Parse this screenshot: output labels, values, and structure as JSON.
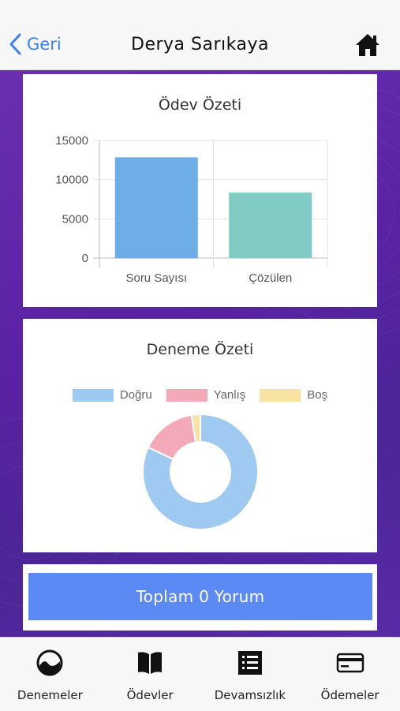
{
  "header": {
    "back_label": "Geri",
    "title": "Derya Sarıkaya"
  },
  "odev_card": {
    "title": "Ödev Özeti"
  },
  "deneme_card": {
    "title": "Deneme Özeti"
  },
  "comments": {
    "button_label": "Toplam 0 Yorum"
  },
  "tabs": [
    {
      "label": "Denemeler",
      "icon": "exam-icon"
    },
    {
      "label": "Ödevler",
      "icon": "book-icon"
    },
    {
      "label": "Devamsızlık",
      "icon": "list-icon"
    },
    {
      "label": "Ödemeler",
      "icon": "credit-card-icon"
    }
  ],
  "colors": {
    "accent": "#3b82f6",
    "button": "#5b8af5",
    "background": "#5b22a6"
  },
  "chart_data": [
    {
      "type": "bar",
      "title": "Ödev Özeti",
      "categories": [
        "Soru Sayısı",
        "Çözülen"
      ],
      "values": [
        12800,
        8300
      ],
      "colors": [
        "#6eaee8",
        "#80cbc4"
      ],
      "yticks": [
        "0",
        "5000",
        "10000",
        "15000"
      ],
      "ylim": [
        0,
        15000
      ],
      "grid": true
    },
    {
      "type": "pie",
      "title": "Deneme Özeti",
      "labels": [
        "Doğru",
        "Yanlış",
        "Boş"
      ],
      "values": [
        82,
        15.5,
        2.5
      ],
      "colors": [
        "#9ec9f0",
        "#f3a9b8",
        "#f9e3a2"
      ],
      "legend": "top",
      "donut": true
    }
  ]
}
